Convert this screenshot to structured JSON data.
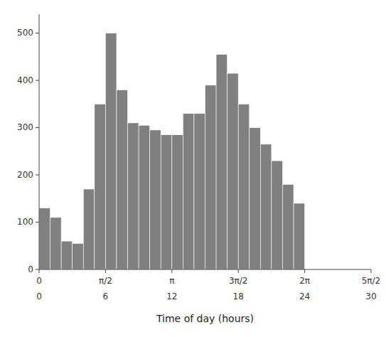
{
  "chart_data": {
    "type": "histogram",
    "xlabel": "Time of day (hours)",
    "bins": [
      0.0,
      0.2618,
      0.5236,
      0.7854,
      1.0472,
      1.309,
      1.5708,
      1.8326,
      2.0944,
      2.3562,
      2.618,
      2.8798,
      3.1416,
      3.4034,
      3.6652,
      3.927,
      4.1888,
      4.4506,
      4.7124,
      4.9742,
      5.236,
      5.4978,
      5.7596,
      6.0214,
      6.2832
    ],
    "values": [
      130,
      110,
      60,
      55,
      170,
      350,
      500,
      380,
      310,
      305,
      295,
      285,
      285,
      330,
      330,
      390,
      455,
      415,
      350,
      300,
      265,
      230,
      180,
      140
    ],
    "color": "#808080",
    "xlim": [
      0,
      7.8539815
    ],
    "xticks": [
      0,
      {
        "value": 1.5707963,
        "label": "π/2"
      },
      {
        "value": 3.1415927,
        "label": "π"
      },
      {
        "value": 4.712389,
        "label": "3π/2"
      },
      {
        "value": 6.2831852,
        "label": "2π"
      },
      {
        "value": 7.8539815,
        "label": "5π/2"
      }
    ],
    "x2lim": [
      0,
      7.8539815
    ],
    "x2ticks": [
      0,
      {
        "value": 1.5707963,
        "label": "6"
      },
      {
        "value": 3.1415927,
        "label": "12"
      },
      {
        "value": 4.712389,
        "label": "18"
      },
      {
        "value": 6.2831852,
        "label": "24"
      },
      {
        "value": 7.8539815,
        "label": "30"
      }
    ],
    "ylim": [
      0,
      540
    ],
    "yticks": [
      0,
      100,
      200,
      300,
      400,
      500
    ]
  }
}
